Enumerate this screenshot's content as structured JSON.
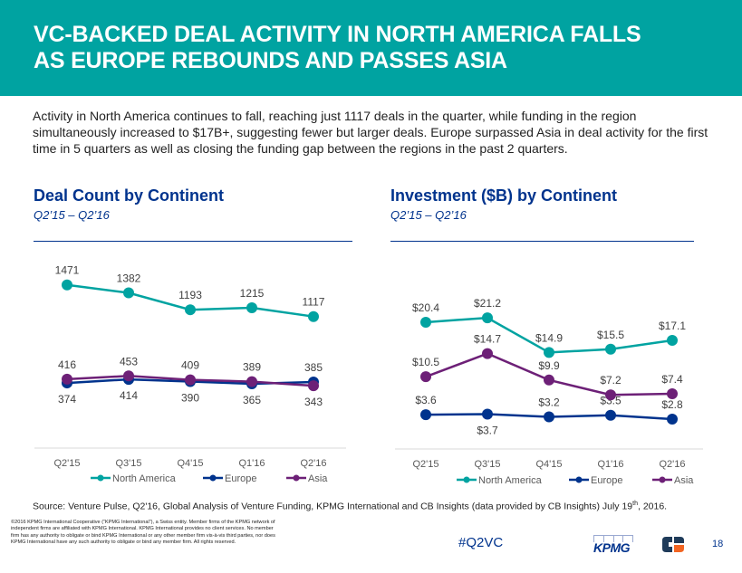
{
  "header": {
    "title_line1": "VC-BACKED DEAL ACTIVITY IN NORTH AMERICA FALLS",
    "title_line2": "AS EUROPE REBOUNDS AND PASSES ASIA"
  },
  "intro": "Activity in North America continues to fall, reaching just 1117 deals in the quarter, while funding in the region simultaneously increased to $17B+, suggesting fewer but larger deals. Europe surpassed Asia in deal activity for the first time in 5 quarters as well as closing the funding gap between the regions in the past 2 quarters.",
  "colors": {
    "north_america": "#00a3a1",
    "europe": "#00338d",
    "asia": "#6d2077",
    "brand": "#00338d",
    "header": "#00a3a1"
  },
  "chart_data": [
    {
      "type": "line",
      "title": "Deal Count by Continent",
      "subtitle": "Q2’15 – Q2’16",
      "xlabel": "",
      "ylabel": "",
      "categories": [
        "Q2'15",
        "Q3'15",
        "Q4'15",
        "Q1'16",
        "Q2'16"
      ],
      "series": [
        {
          "name": "North America",
          "values": [
            1471,
            1382,
            1193,
            1215,
            1117
          ],
          "labels": [
            "1471",
            "1382",
            "1193",
            "1215",
            "1117"
          ]
        },
        {
          "name": "Europe",
          "values": [
            374,
            414,
            390,
            365,
            385
          ],
          "labels": [
            "374",
            "414",
            "390",
            "365",
            "385"
          ]
        },
        {
          "name": "Asia",
          "values": [
            416,
            453,
            409,
            389,
            343
          ],
          "labels": [
            "416",
            "453",
            "409",
            "389",
            "343"
          ]
        }
      ],
      "ylim": [
        0,
        1600
      ],
      "grid": false,
      "legend": "bottom"
    },
    {
      "type": "line",
      "title": "Investment ($B) by Continent",
      "subtitle": "Q2’15 – Q2’16",
      "xlabel": "",
      "ylabel": "",
      "categories": [
        "Q2'15",
        "Q3'15",
        "Q4'15",
        "Q1'16",
        "Q2'16"
      ],
      "series": [
        {
          "name": "North America",
          "values": [
            20.4,
            21.2,
            14.9,
            15.5,
            17.1
          ],
          "labels": [
            "$20.4",
            "$21.2",
            "$14.9",
            "$15.5",
            "$17.1"
          ]
        },
        {
          "name": "Europe",
          "values": [
            3.6,
            3.7,
            3.2,
            3.5,
            2.8
          ],
          "labels": [
            "$3.6",
            "$3.7",
            "$3.2",
            "$3.5",
            "$2.8"
          ]
        },
        {
          "name": "Asia",
          "values": [
            10.5,
            14.7,
            9.9,
            7.2,
            7.4
          ],
          "labels": [
            "$10.5",
            "$14.7",
            "$9.9",
            "$7.2",
            "$7.4"
          ]
        }
      ],
      "ylim": [
        0,
        25
      ],
      "grid": false,
      "legend": "bottom"
    }
  ],
  "footer": {
    "source": "Source: Venture Pulse, Q2'16, Global Analysis of Venture Funding, KPMG International and CB Insights (data provided by CB Insights) July 19",
    "source_sup": "th",
    "source_end": ", 2016.",
    "legal": "©2016 KPMG International Cooperative (“KPMG International”), a Swiss entity. Member firms of the KPMG network of independent firms are affiliated with KPMG International. KPMG International provides no client services. No member firm has any authority to obligate or bind KPMG International or any other member firm vis-à-vis third parties, nor does KPMG International have any such authority to obligate or bind any member firm. All rights reserved.",
    "hashtag": "#Q2VC",
    "kpmg_logo": "KPMG",
    "page_number": "18"
  }
}
